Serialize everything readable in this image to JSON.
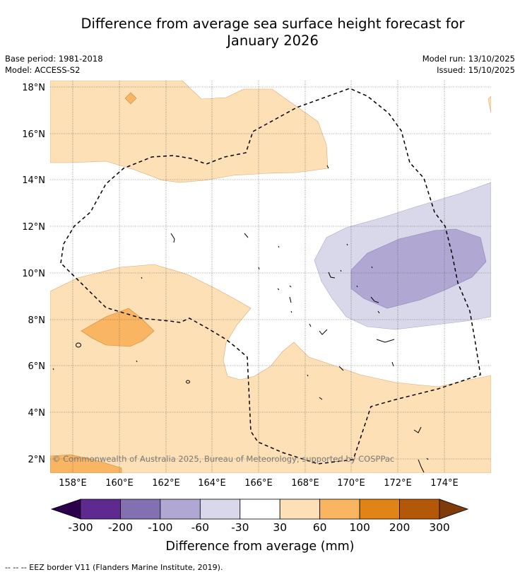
{
  "title_line1": "Difference from average sea surface height forecast for",
  "title_line2": "January 2026",
  "base_period": "Base period: 1981-2018",
  "model": "Model: ACCESS-S2",
  "model_run": "Model run: 13/10/2025",
  "issued": "Issued: 15/10/2025",
  "lat_labels": [
    "18°N",
    "16°N",
    "14°N",
    "12°N",
    "10°N",
    "8°N",
    "6°N",
    "4°N",
    "2°N"
  ],
  "lon_labels": [
    "158°E",
    "160°E",
    "162°E",
    "164°E",
    "166°E",
    "168°E",
    "170°E",
    "172°E",
    "174°E"
  ],
  "copyright": "© Commonwealth of Australia 2025, Bureau of Meteorology, supported by COSPPac",
  "colorbar": {
    "ticks": [
      "-300",
      "-200",
      "-100",
      "-60",
      "-30",
      "30",
      "60",
      "100",
      "200",
      "300"
    ],
    "colors": [
      "#5e2a8f",
      "#8270b0",
      "#b0a8d2",
      "#d8d8ea",
      "#ffffff",
      "#fde0b6",
      "#f9b562",
      "#e08417",
      "#b35808"
    ],
    "under_color": "#2d004b",
    "over_color": "#7f3b08",
    "label": "Difference from average (mm)"
  },
  "footer": "--  --  -- EEZ border V11 (Flanders Marine Institute, 2019)."
}
